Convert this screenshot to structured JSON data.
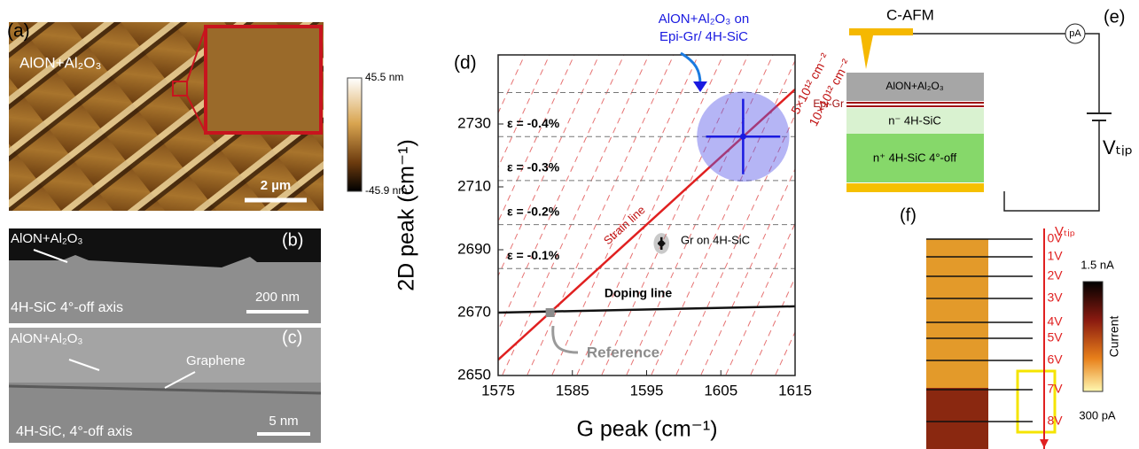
{
  "chart_data": {
    "type": "scatter",
    "panel": "(d)",
    "x_label": "G peak (cm⁻¹)",
    "y_label": "2D peak (cm⁻¹)",
    "xlim": [
      1575,
      1615
    ],
    "ylim": [
      2650,
      2750
    ],
    "xticks": [
      1575,
      1585,
      1595,
      1605,
      1615
    ],
    "yticks": [
      2650,
      2670,
      2690,
      2710,
      2730
    ],
    "points": [
      {
        "label": "Reference",
        "x": 1582,
        "y": 2670,
        "xerr": 0,
        "yerr": 0,
        "color": "#8c8c8c"
      },
      {
        "label": "Gr on 4H-SiC",
        "x": 1597,
        "y": 2692,
        "xerr": 0.5,
        "yerr": 2,
        "color": "#111111"
      },
      {
        "label": "AlON+Al₂O₃ on Epi-Gr/ 4H-SiC",
        "x": 1608,
        "y": 2726,
        "xerr": 5,
        "yerr": 12,
        "color": "#1a1ae0"
      }
    ],
    "lines": [
      {
        "label": "Strain line",
        "x": [
          1575,
          1615
        ],
        "y": [
          2655,
          2741
        ],
        "color": "#e02020"
      },
      {
        "label": "Doping line",
        "x": [
          1575,
          1615
        ],
        "y": [
          2670,
          2672
        ],
        "color": "#111111"
      }
    ],
    "strain_levels": [
      {
        "label": "ε = -0.1%",
        "y": 2684
      },
      {
        "label": "ε = -0.2%",
        "y": 2698
      },
      {
        "label": "ε = -0.3%",
        "y": 2712
      },
      {
        "label": "ε = -0.4%",
        "y": 2726
      },
      {
        "label": null,
        "y": 2740
      }
    ],
    "doping_labels": [
      "5×10¹² cm⁻²",
      "10×10¹² cm⁻²"
    ]
  },
  "panel_a": {
    "label": "(a)",
    "sample": "AlON+Al₂O₃",
    "scale": "2 µm",
    "cbar_max": "45.5 nm",
    "cbar_min": "-45.9 nm"
  },
  "panel_b": {
    "label": "(b)",
    "layer": "AlON+Al₂O₃",
    "substrate": "4H-SiC 4°-off axis",
    "scale": "200 nm"
  },
  "panel_c": {
    "label": "(c)",
    "layer": "AlON+Al₂O₃",
    "graphene": "Graphene",
    "substrate": "4H-SiC, 4°-off axis",
    "scale": "5 nm"
  },
  "panel_e": {
    "label": "(e)",
    "tool": "C-AFM",
    "meter": "pA",
    "layer1": "AlON+Al₂O₃",
    "graphene": "Epi-Gr",
    "layer2": "n⁻ 4H-SiC",
    "layer3": "n⁺ 4H-SiC 4°-off",
    "bias": "Vₜᵢₚ"
  },
  "panel_f": {
    "label": "(f)",
    "bias": "Vₜᵢₚ",
    "voltages": [
      "0V",
      "1V",
      "2V",
      "3V",
      "4V",
      "5V",
      "6V",
      "7V",
      "8V"
    ],
    "cbar_max": "1.5 nA",
    "cbar_title": "Current",
    "cbar_min": "300 pA"
  }
}
